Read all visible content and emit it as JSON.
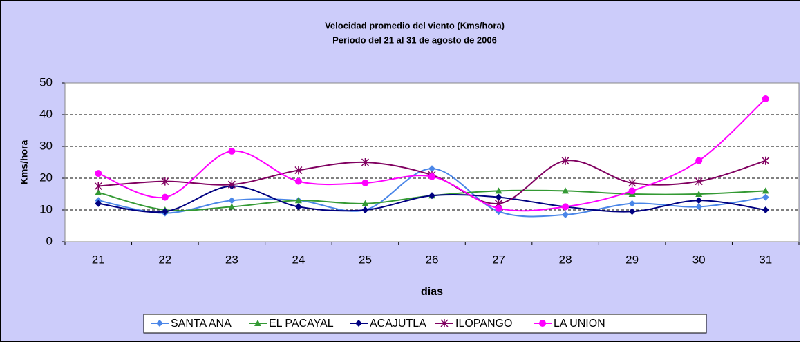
{
  "chart_data": {
    "type": "line",
    "title": "Velocidad promedio del viento (Kms/hora)",
    "subtitle": "Período del 21 al 31 de agosto de 2006",
    "x_label": "dias",
    "y_label": "Kms/hora",
    "categories": [
      "21",
      "22",
      "23",
      "24",
      "25",
      "26",
      "27",
      "28",
      "29",
      "30",
      "31"
    ],
    "series": [
      {
        "name": "SANTA ANA",
        "color": "#4a86e8",
        "marker": "diamond",
        "values": [
          13,
          9,
          13,
          13,
          10,
          23,
          9.5,
          8.5,
          12,
          11,
          14
        ]
      },
      {
        "name": "EL PACAYAL",
        "color": "#339933",
        "marker": "triangle",
        "values": [
          15.5,
          10,
          11,
          13,
          12,
          14.5,
          16,
          16,
          15,
          15,
          16
        ]
      },
      {
        "name": "ACAJUTLA",
        "color": "#000080",
        "marker": "diamond",
        "values": [
          12,
          9.5,
          17.5,
          11,
          10,
          14.5,
          14,
          11,
          9.5,
          13,
          10
        ]
      },
      {
        "name": "ILOPANGO",
        "color": "#800060",
        "marker": "asterisk",
        "values": [
          17.5,
          19,
          18,
          22.5,
          25,
          21,
          12,
          25.5,
          18.5,
          19,
          25.5
        ]
      },
      {
        "name": "LA UNION",
        "color": "#ff00ff",
        "marker": "circle",
        "values": [
          21.5,
          14,
          28.5,
          19,
          18.5,
          20.5,
          10.5,
          11,
          16,
          25.5,
          45
        ]
      }
    ],
    "ylim": [
      0,
      50
    ],
    "yticks": [
      0,
      10,
      20,
      30,
      40,
      50
    ],
    "grid": true,
    "smooth": true,
    "legend": "bottom"
  }
}
